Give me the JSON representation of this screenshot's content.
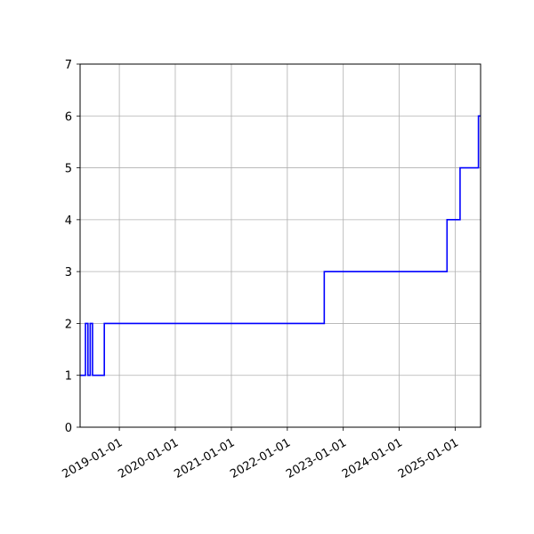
{
  "chart_data": {
    "type": "line",
    "step": true,
    "title": "",
    "xlabel": "",
    "ylabel": "",
    "x_axis_type": "date",
    "xlim": [
      "2018-04-20",
      "2025-06-15"
    ],
    "ylim": [
      0,
      7
    ],
    "grid": true,
    "legend": "none",
    "colors": {
      "line": "#0000ff",
      "grid": "#b0b0b0",
      "axes": "#000000"
    },
    "x_ticks": [
      "2019-01-01",
      "2020-01-01",
      "2021-01-01",
      "2022-01-01",
      "2023-01-01",
      "2024-01-01",
      "2025-01-01"
    ],
    "y_ticks": [
      0,
      1,
      2,
      3,
      4,
      5,
      6,
      7
    ],
    "series": [
      {
        "name": "",
        "x": [
          "2018-04-20",
          "2018-05-25",
          "2018-06-10",
          "2018-06-25",
          "2018-07-10",
          "2018-09-25",
          "2019-04-15",
          "2019-10-25",
          "2020-07-15",
          "2020-08-01",
          "2020-12-25",
          "2021-02-01",
          "2021-04-15",
          "2021-07-15",
          "2021-09-05",
          "2022-08-30",
          "2024-11-08",
          "2025-02-01",
          "2025-06-01",
          "2025-06-15"
        ],
        "y": [
          1,
          2,
          1,
          2,
          1,
          2,
          2,
          2,
          2,
          2,
          2,
          2,
          2,
          2,
          2,
          3,
          4,
          5,
          6,
          6
        ]
      }
    ]
  }
}
